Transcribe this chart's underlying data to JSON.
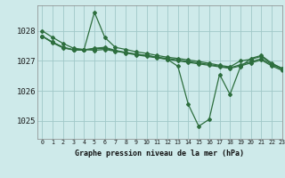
{
  "title": "Graphe pression niveau de la mer (hPa)",
  "bg_color": "#ceeaea",
  "grid_color": "#a0c8c8",
  "line_color": "#2d6e3e",
  "xlim": [
    -0.5,
    23
  ],
  "ylim": [
    1024.4,
    1028.85
  ],
  "yticks": [
    1025,
    1026,
    1027,
    1028
  ],
  "xticks": [
    0,
    1,
    2,
    3,
    4,
    5,
    6,
    7,
    8,
    9,
    10,
    11,
    12,
    13,
    14,
    15,
    16,
    17,
    18,
    19,
    20,
    21,
    22,
    23
  ],
  "line_swoop": [
    1028.0,
    1027.78,
    1027.58,
    1027.42,
    1027.38,
    1027.35,
    1027.38,
    1027.32,
    1027.28,
    1027.22,
    1027.18,
    1027.12,
    1027.05,
    1026.82,
    1025.55,
    1024.82,
    1025.05,
    1026.55,
    1025.88,
    1026.8,
    1027.08,
    1027.18,
    1026.92,
    1026.75
  ],
  "line_spike": [
    1027.82,
    1027.62,
    1027.45,
    1027.37,
    1027.37,
    1028.62,
    1027.78,
    1027.45,
    1027.38,
    1027.3,
    1027.25,
    1027.18,
    1027.12,
    1027.08,
    1027.03,
    1026.98,
    1026.92,
    1026.85,
    1026.8,
    1027.0,
    1027.05,
    1027.15,
    1026.9,
    1026.75
  ],
  "line_mid": [
    1027.82,
    1027.62,
    1027.45,
    1027.37,
    1027.37,
    1027.42,
    1027.45,
    1027.35,
    1027.28,
    1027.22,
    1027.18,
    1027.12,
    1027.08,
    1027.03,
    1026.98,
    1026.93,
    1026.88,
    1026.82,
    1026.77,
    1026.87,
    1026.97,
    1027.07,
    1026.87,
    1026.72
  ],
  "line_flat": [
    1027.82,
    1027.6,
    1027.43,
    1027.36,
    1027.36,
    1027.4,
    1027.42,
    1027.33,
    1027.26,
    1027.2,
    1027.15,
    1027.1,
    1027.05,
    1027.0,
    1026.95,
    1026.9,
    1026.85,
    1026.8,
    1026.75,
    1026.83,
    1026.93,
    1027.03,
    1026.83,
    1026.68
  ]
}
